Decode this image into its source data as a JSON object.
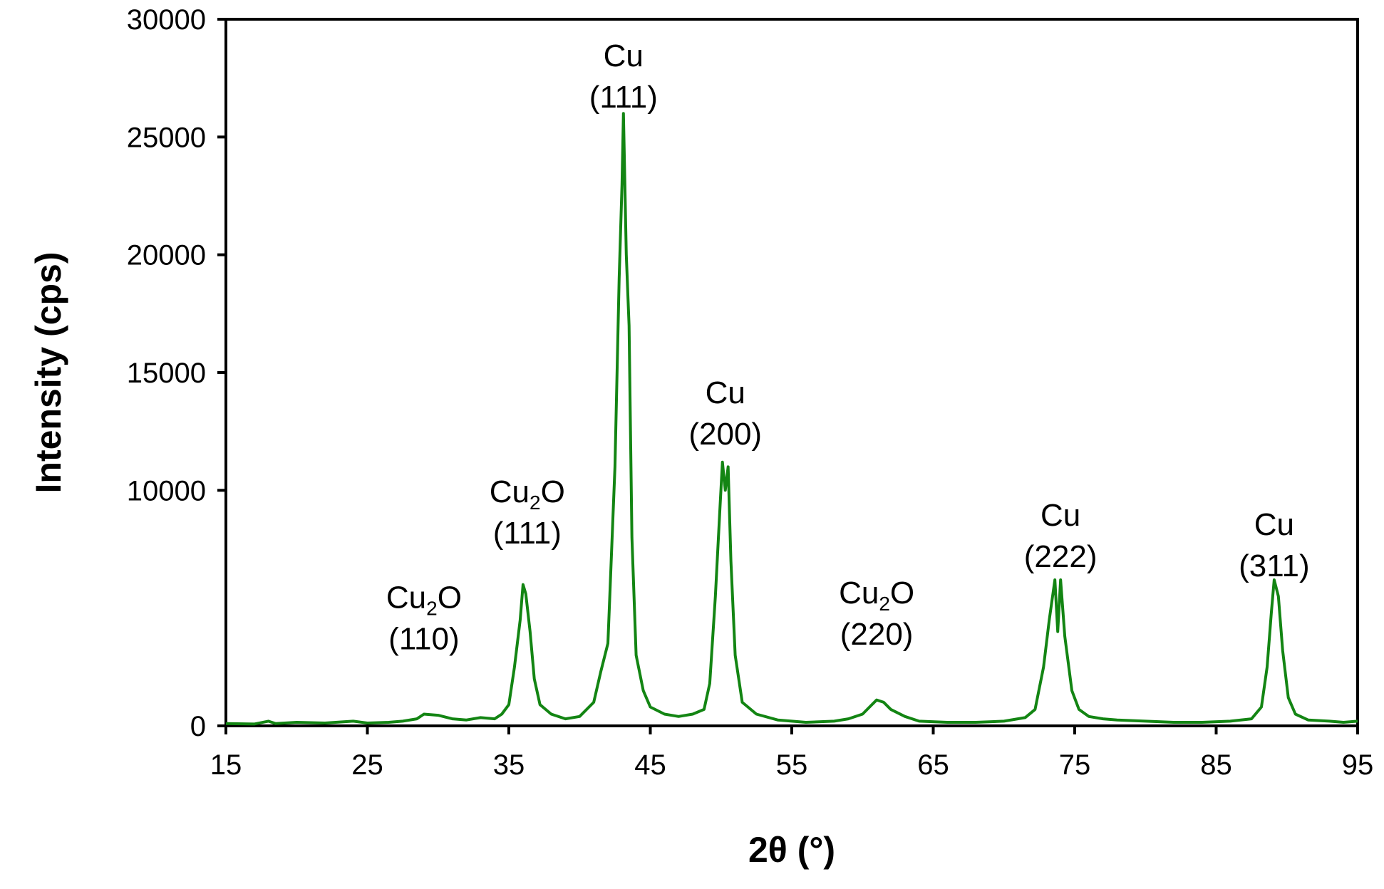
{
  "chart_data": {
    "type": "line",
    "xlabel": "2θ (°)",
    "ylabel": "Intensity (cps)",
    "xlim": [
      15,
      95
    ],
    "ylim": [
      0,
      30000
    ],
    "x_ticks": [
      "15",
      "25",
      "35",
      "45",
      "55",
      "65",
      "75",
      "85",
      "95"
    ],
    "y_ticks": [
      "0",
      "10000",
      "15000",
      "20000",
      "25000",
      "30000"
    ],
    "grid": false,
    "line_color": "#138513",
    "series": [
      {
        "points": [
          [
            15,
            100
          ],
          [
            17,
            80
          ],
          [
            18,
            200
          ],
          [
            18.5,
            100
          ],
          [
            20,
            150
          ],
          [
            22,
            120
          ],
          [
            24,
            200
          ],
          [
            25,
            120
          ],
          [
            26.5,
            150
          ],
          [
            27.5,
            200
          ],
          [
            28.5,
            300
          ],
          [
            29,
            500
          ],
          [
            30,
            450
          ],
          [
            31,
            300
          ],
          [
            32,
            250
          ],
          [
            33,
            350
          ],
          [
            34,
            300
          ],
          [
            34.5,
            500
          ],
          [
            35,
            900
          ],
          [
            35.4,
            2500
          ],
          [
            35.8,
            4500
          ],
          [
            36.0,
            6000
          ],
          [
            36.2,
            5600
          ],
          [
            36.5,
            4000
          ],
          [
            36.8,
            2000
          ],
          [
            37.2,
            900
          ],
          [
            38,
            500
          ],
          [
            39,
            300
          ],
          [
            40,
            400
          ],
          [
            41,
            1000
          ],
          [
            41.5,
            2300
          ],
          [
            42,
            3500
          ],
          [
            42.5,
            11000
          ],
          [
            42.8,
            19000
          ],
          [
            43.0,
            23000
          ],
          [
            43.1,
            26000
          ],
          [
            43.3,
            20000
          ],
          [
            43.5,
            17000
          ],
          [
            43.7,
            8000
          ],
          [
            44,
            3000
          ],
          [
            44.5,
            1500
          ],
          [
            45,
            800
          ],
          [
            46,
            500
          ],
          [
            47,
            400
          ],
          [
            48,
            500
          ],
          [
            48.8,
            700
          ],
          [
            49.2,
            1800
          ],
          [
            49.6,
            5500
          ],
          [
            49.9,
            9000
          ],
          [
            50.1,
            11200
          ],
          [
            50.3,
            10000
          ],
          [
            50.5,
            11000
          ],
          [
            50.7,
            7000
          ],
          [
            51,
            3000
          ],
          [
            51.5,
            1000
          ],
          [
            52.5,
            500
          ],
          [
            54,
            250
          ],
          [
            56,
            150
          ],
          [
            58,
            200
          ],
          [
            59,
            300
          ],
          [
            60,
            500
          ],
          [
            60.5,
            800
          ],
          [
            61,
            1100
          ],
          [
            61.5,
            1000
          ],
          [
            62,
            700
          ],
          [
            63,
            400
          ],
          [
            64,
            200
          ],
          [
            66,
            150
          ],
          [
            68,
            150
          ],
          [
            70,
            200
          ],
          [
            71.5,
            350
          ],
          [
            72.2,
            700
          ],
          [
            72.8,
            2500
          ],
          [
            73.2,
            4500
          ],
          [
            73.6,
            6200
          ],
          [
            73.8,
            4000
          ],
          [
            74.0,
            6200
          ],
          [
            74.3,
            3800
          ],
          [
            74.8,
            1500
          ],
          [
            75.3,
            700
          ],
          [
            76,
            400
          ],
          [
            77,
            300
          ],
          [
            78,
            250
          ],
          [
            80,
            200
          ],
          [
            82,
            150
          ],
          [
            84,
            150
          ],
          [
            86,
            200
          ],
          [
            87.5,
            300
          ],
          [
            88.2,
            800
          ],
          [
            88.6,
            2500
          ],
          [
            88.9,
            4800
          ],
          [
            89.1,
            6200
          ],
          [
            89.4,
            5500
          ],
          [
            89.7,
            3200
          ],
          [
            90.1,
            1200
          ],
          [
            90.6,
            500
          ],
          [
            91.5,
            250
          ],
          [
            93,
            200
          ],
          [
            94,
            150
          ],
          [
            95,
            200
          ]
        ]
      }
    ],
    "annotations": [
      {
        "main": "Cu",
        "sub": "2",
        "tail": "O",
        "hkl": "(110)",
        "x": 29.0,
        "y": 5000
      },
      {
        "main": "Cu",
        "sub": "2",
        "tail": "O",
        "hkl": "(111)",
        "x": 36.3,
        "y": 9500
      },
      {
        "main": "Cu",
        "sub": "",
        "tail": "",
        "hkl": "(111)",
        "x": 43.1,
        "y": 28000
      },
      {
        "main": "Cu",
        "sub": "",
        "tail": "",
        "hkl": "(200)",
        "x": 50.3,
        "y": 13700
      },
      {
        "main": "Cu",
        "sub": "2",
        "tail": "O",
        "hkl": "(220)",
        "x": 61.0,
        "y": 5200
      },
      {
        "main": "Cu",
        "sub": "",
        "tail": "",
        "hkl": "(222)",
        "x": 74.0,
        "y": 8500
      },
      {
        "main": "Cu",
        "sub": "",
        "tail": "",
        "hkl": "(311)",
        "x": 89.1,
        "y": 8100
      }
    ]
  }
}
